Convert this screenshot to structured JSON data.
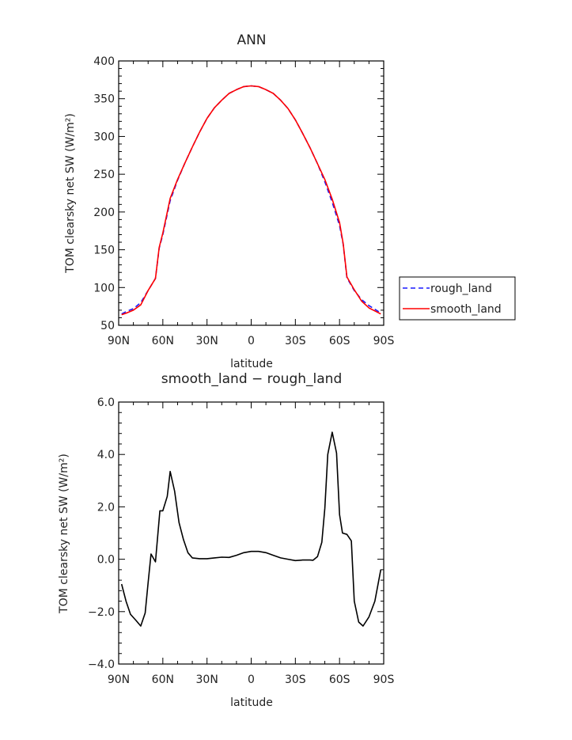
{
  "chart_data": [
    {
      "type": "line",
      "title": "ANN",
      "xlabel": "latitude",
      "ylabel": "TOM clearsky net SW (W/m²)",
      "xlim": [
        90,
        -90
      ],
      "ylim": [
        50,
        400
      ],
      "xtick_labels": [
        "90N",
        "60N",
        "30N",
        "0",
        "30S",
        "60S",
        "90S"
      ],
      "ytick_labels": [
        "50",
        "100",
        "150",
        "200",
        "250",
        "300",
        "350",
        "400"
      ],
      "legend": "right",
      "x": [
        88,
        85,
        80,
        75,
        70,
        65,
        62.5,
        60,
        55,
        50,
        45,
        40,
        35,
        30,
        25,
        20,
        15,
        10,
        5,
        0,
        -5,
        -10,
        -15,
        -20,
        -25,
        -30,
        -35,
        -40,
        -45,
        -50,
        -55,
        -60,
        -62.5,
        -65,
        -70,
        -75,
        -80,
        -85,
        -88
      ],
      "series": [
        {
          "name": "rough_land",
          "color": "#1a1aff",
          "dash": true,
          "values": [
            65,
            68,
            72,
            80,
            96,
            112,
            152,
            170,
            215,
            242,
            265,
            286,
            306,
            324,
            338,
            348,
            357,
            362,
            366,
            367,
            366,
            362,
            357,
            348,
            337,
            322,
            304,
            285,
            264,
            240,
            213,
            182,
            157,
            113,
            96,
            84,
            76,
            70,
            66
          ]
        },
        {
          "name": "smooth_land",
          "color": "#ff0000",
          "dash": false,
          "values": [
            64,
            66,
            70,
            77,
            96,
            112,
            153,
            172,
            218,
            243,
            265,
            286,
            306,
            324,
            338,
            348,
            357,
            362,
            366,
            367,
            366,
            362,
            357,
            348,
            337,
            322,
            304,
            285,
            264,
            243,
            217,
            186,
            158,
            114,
            97,
            82,
            73,
            68,
            65
          ]
        }
      ]
    },
    {
      "type": "line",
      "title": "smooth_land − rough_land",
      "xlabel": "latitude",
      "ylabel": "TOM clearsky net SW (W/m²)",
      "xlim": [
        90,
        -90
      ],
      "ylim": [
        -4,
        6
      ],
      "xtick_labels": [
        "90N",
        "60N",
        "30N",
        "0",
        "30S",
        "60S",
        "90S"
      ],
      "ytick_labels": [
        "−4.0",
        "−2.0",
        "0.0",
        "2.0",
        "4.0",
        "6.0"
      ],
      "x": [
        88,
        85,
        82,
        78,
        75,
        72,
        70,
        68,
        65,
        62,
        60,
        57,
        55,
        52,
        49,
        46,
        43,
        40,
        35,
        30,
        25,
        20,
        15,
        10,
        5,
        0,
        -5,
        -10,
        -15,
        -20,
        -25,
        -30,
        -35,
        -40,
        -42,
        -45,
        -48,
        -50,
        -52,
        -55,
        -58,
        -60,
        -62,
        -65,
        -68,
        -70,
        -73,
        -76,
        -80,
        -84,
        -88
      ],
      "series": [
        {
          "name": "smooth_land − rough_land",
          "color": "#000000",
          "values": [
            -0.95,
            -1.6,
            -2.1,
            -2.35,
            -2.55,
            -2.05,
            -0.9,
            0.2,
            -0.1,
            1.85,
            1.85,
            2.4,
            3.35,
            2.6,
            1.4,
            0.75,
            0.25,
            0.05,
            0.02,
            0.02,
            0.05,
            0.08,
            0.07,
            0.15,
            0.25,
            0.3,
            0.3,
            0.25,
            0.15,
            0.05,
            0.0,
            -0.05,
            -0.03,
            -0.03,
            -0.04,
            0.1,
            0.65,
            1.95,
            4.0,
            4.85,
            4.05,
            1.7,
            1.0,
            0.95,
            0.7,
            -1.6,
            -2.4,
            -2.55,
            -2.2,
            -1.6,
            -0.4
          ]
        }
      ]
    }
  ]
}
